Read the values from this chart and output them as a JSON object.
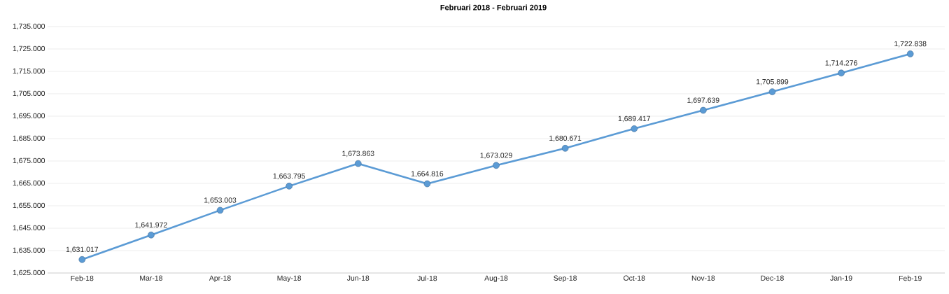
{
  "chart_data": {
    "type": "line",
    "title": "Februari 2018 - Februari 2019",
    "categories": [
      "Feb-18",
      "Mar-18",
      "Apr-18",
      "May-18",
      "Jun-18",
      "Jul-18",
      "Aug-18",
      "Sep-18",
      "Oct-18",
      "Nov-18",
      "Dec-18",
      "Jan-19",
      "Feb-19"
    ],
    "series": [
      {
        "color": "#5b9bd5",
        "values": [
          1631.017,
          1641.972,
          1653.003,
          1663.795,
          1673.863,
          1664.816,
          1673.029,
          1680.671,
          1689.417,
          1697.639,
          1705.899,
          1714.276,
          1722.838
        ],
        "value_labels": [
          "1,631.017",
          "1,641.972",
          "1,653.003",
          "1,663.795",
          "1,673.863",
          "1,664.816",
          "1,673.029",
          "1,680.671",
          "1,689.417",
          "1,697.639",
          "1,705.899",
          "1,714.276",
          "1,722.838"
        ]
      }
    ],
    "ylim": [
      1625,
      1735
    ],
    "yticks": [
      {
        "value": 1625,
        "label": "1,625.000"
      },
      {
        "value": 1635,
        "label": "1,635.000"
      },
      {
        "value": 1645,
        "label": "1,645.000"
      },
      {
        "value": 1655,
        "label": "1,655.000"
      },
      {
        "value": 1665,
        "label": "1,665.000"
      },
      {
        "value": 1675,
        "label": "1,675.000"
      },
      {
        "value": 1685,
        "label": "1,685.000"
      },
      {
        "value": 1695,
        "label": "1,695.000"
      },
      {
        "value": 1705,
        "label": "1,705.000"
      },
      {
        "value": 1715,
        "label": "1,715.000"
      },
      {
        "value": 1725,
        "label": "1,725.000"
      },
      {
        "value": 1735,
        "label": "1,735.000"
      }
    ],
    "grid": "y",
    "marker": "circle",
    "line_style": "solid"
  }
}
